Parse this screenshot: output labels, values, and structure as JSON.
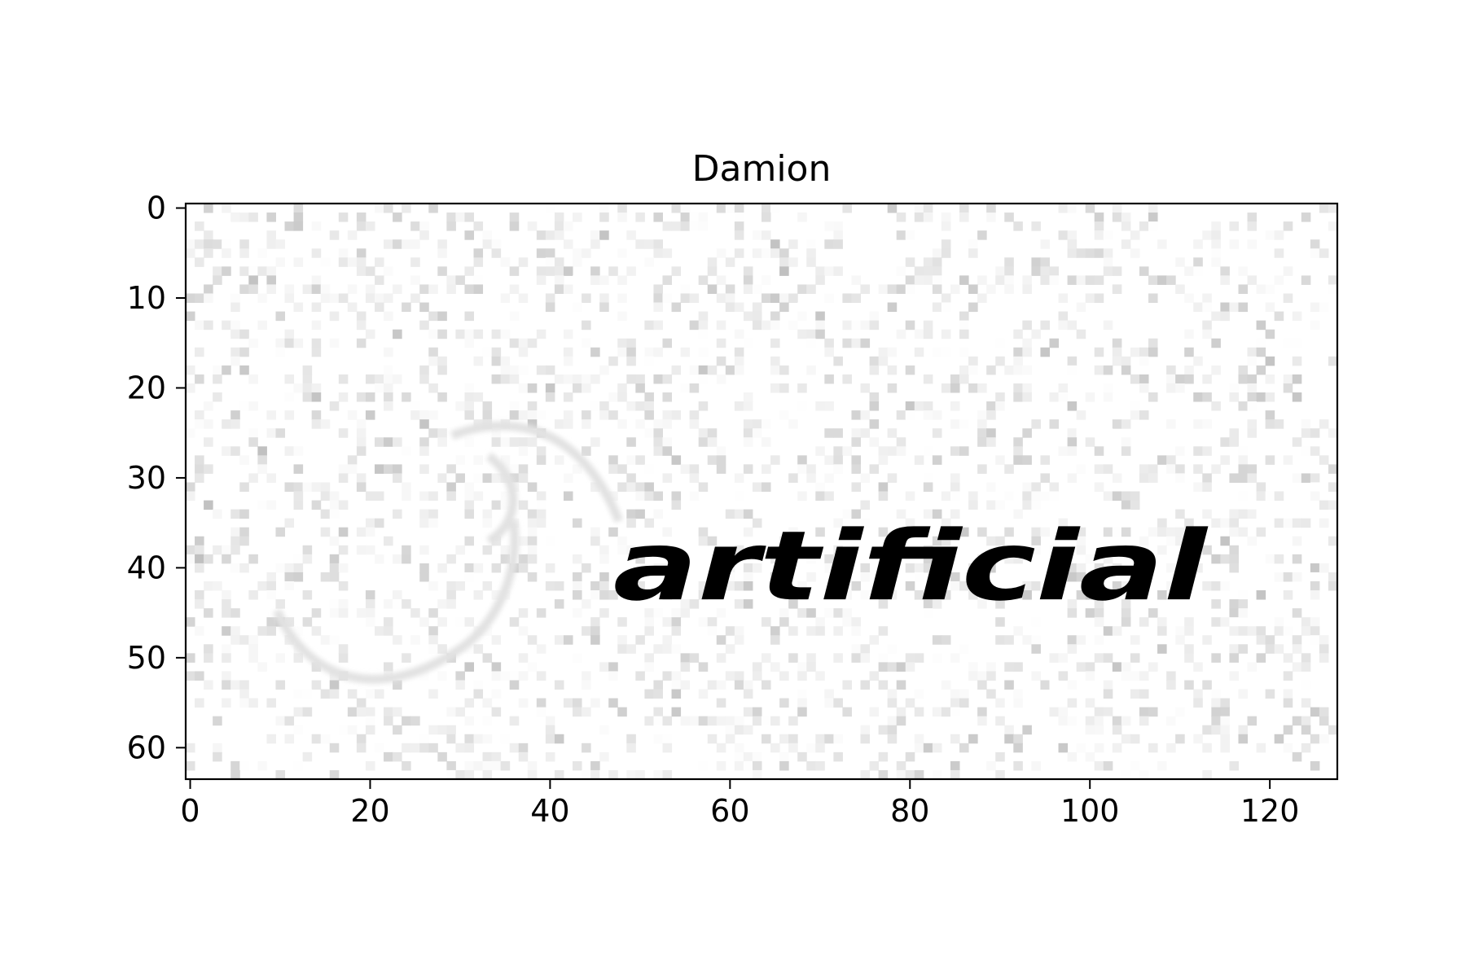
{
  "chart_data": {
    "type": "heatmap",
    "title": "Damion",
    "xlabel": "",
    "ylabel": "",
    "image_shape": [
      64,
      128
    ],
    "xlim": [
      -0.5,
      127.5
    ],
    "ylim": [
      63.5,
      -0.5
    ],
    "x_ticks": [
      0,
      20,
      40,
      60,
      80,
      100,
      120
    ],
    "y_ticks": [
      0,
      10,
      20,
      30,
      40,
      50,
      60
    ],
    "colormap": "gray",
    "image_content_text": "artificial",
    "image_content_bounds": {
      "x": [
        47,
        113
      ],
      "y": [
        32,
        47
      ]
    },
    "grid": false,
    "legend": false
  },
  "colors": {
    "ink": "#0b0b0b",
    "paper": "#ffffff",
    "noise": "#d8d8d8",
    "axis": "#000000"
  }
}
